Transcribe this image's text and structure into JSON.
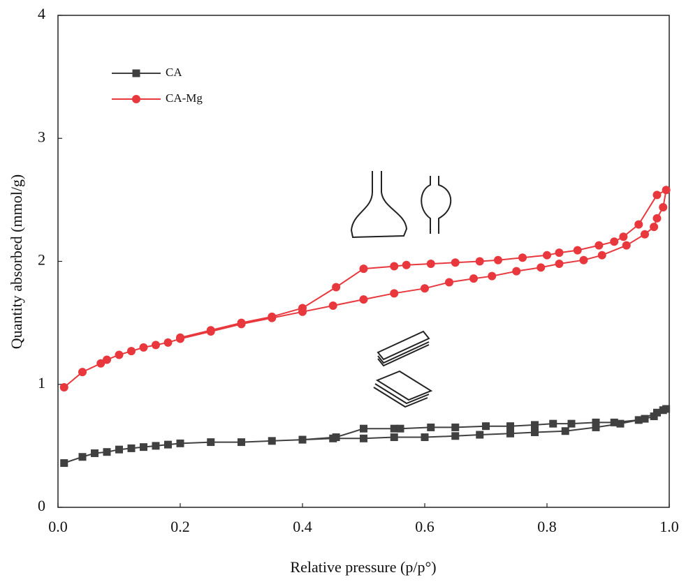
{
  "chart_data": {
    "type": "line",
    "x_label": "Relative pressure (p/p°)",
    "y_label": "Quantity absorbed (mmol/g)",
    "xlim": [
      0,
      1
    ],
    "ylim": [
      0,
      4
    ],
    "xticks": [
      {
        "value": 0,
        "label": "0.0"
      },
      0.2,
      0.4,
      0.6,
      0.8,
      {
        "value": 1,
        "label": "1.0"
      }
    ],
    "yticks": [
      0,
      1,
      2,
      3,
      4
    ],
    "grid": false,
    "legend": "upper left",
    "series": [
      {
        "name": "CA",
        "color": "#404040",
        "marker": "square",
        "x": [
          0.01,
          0.04,
          0.06,
          0.08,
          0.1,
          0.12,
          0.14,
          0.16,
          0.18,
          0.2,
          0.25,
          0.3,
          0.35,
          0.4,
          0.45,
          0.5,
          0.55,
          0.6,
          0.65,
          0.69,
          0.74,
          0.78,
          0.83,
          0.88,
          0.92,
          0.96,
          0.975,
          0.98,
          0.99,
          0.995,
          0.95,
          0.91,
          0.88,
          0.84,
          0.81,
          0.78,
          0.74,
          0.7,
          0.65,
          0.61,
          0.56,
          0.55,
          0.5,
          0.455,
          0.4
        ],
        "values": [
          0.36,
          0.41,
          0.44,
          0.45,
          0.47,
          0.48,
          0.49,
          0.5,
          0.51,
          0.52,
          0.53,
          0.53,
          0.54,
          0.55,
          0.56,
          0.56,
          0.57,
          0.57,
          0.58,
          0.59,
          0.6,
          0.61,
          0.62,
          0.65,
          0.68,
          0.72,
          0.74,
          0.77,
          0.79,
          0.8,
          0.71,
          0.69,
          0.69,
          0.68,
          0.68,
          0.67,
          0.66,
          0.66,
          0.65,
          0.65,
          0.64,
          0.64,
          0.64,
          0.57,
          0.55
        ]
      },
      {
        "name": "CA-Mg",
        "color": "#e8383d",
        "marker": "circle",
        "x": [
          0.01,
          0.04,
          0.07,
          0.08,
          0.1,
          0.12,
          0.14,
          0.16,
          0.18,
          0.2,
          0.25,
          0.3,
          0.35,
          0.4,
          0.45,
          0.5,
          0.55,
          0.6,
          0.64,
          0.68,
          0.71,
          0.75,
          0.79,
          0.82,
          0.86,
          0.89,
          0.93,
          0.96,
          0.975,
          0.98,
          0.99,
          0.995,
          0.98,
          0.95,
          0.925,
          0.91,
          0.885,
          0.85,
          0.82,
          0.8,
          0.76,
          0.72,
          0.69,
          0.65,
          0.61,
          0.57,
          0.55,
          0.5,
          0.455,
          0.4,
          0.35,
          0.3,
          0.25,
          0.2
        ],
        "values": [
          0.976,
          1.1,
          1.17,
          1.2,
          1.24,
          1.27,
          1.3,
          1.32,
          1.34,
          1.37,
          1.43,
          1.49,
          1.54,
          1.59,
          1.64,
          1.69,
          1.74,
          1.78,
          1.83,
          1.86,
          1.88,
          1.92,
          1.95,
          1.98,
          2.01,
          2.05,
          2.13,
          2.22,
          2.28,
          2.35,
          2.44,
          2.58,
          2.54,
          2.3,
          2.2,
          2.16,
          2.13,
          2.09,
          2.07,
          2.05,
          2.03,
          2.01,
          2.0,
          1.99,
          1.98,
          1.97,
          1.96,
          1.94,
          1.79,
          1.62,
          1.55,
          1.5,
          1.44,
          1.38
        ]
      }
    ]
  }
}
